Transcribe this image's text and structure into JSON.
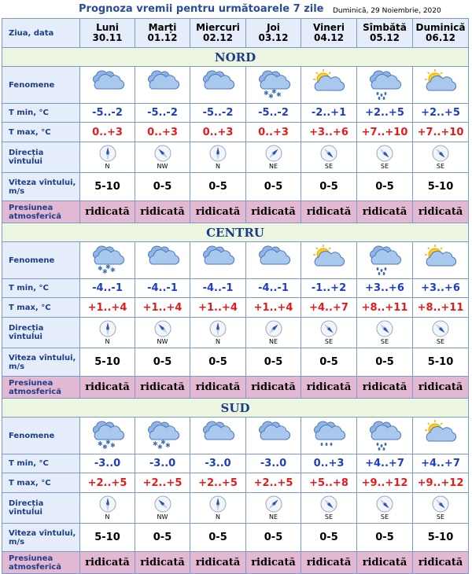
{
  "header": {
    "title": "Prognoza vremii pentru următoarele 7 zile",
    "date": "Duminică, 29 Noiembrie, 2020"
  },
  "columns": {
    "label": "Ziua, data",
    "days": [
      {
        "name": "Luni",
        "date": "30.11"
      },
      {
        "name": "Marți",
        "date": "01.12"
      },
      {
        "name": "Miercuri",
        "date": "02.12"
      },
      {
        "name": "Joi",
        "date": "03.12"
      },
      {
        "name": "Vineri",
        "date": "04.12"
      },
      {
        "name": "Sîmbătă",
        "date": "05.12"
      },
      {
        "name": "Duminică",
        "date": "06.12"
      }
    ]
  },
  "row_labels": {
    "phenomena": "Fenomene",
    "tmin": "T min, °C",
    "tmax": "T max, °C",
    "wind_dir": "Direcția vîntului",
    "wind_speed": "Viteza vîntului, m/s",
    "pressure": "Presiunea atmosferică"
  },
  "regions": [
    {
      "name": "NORD",
      "icons": [
        "cloudy",
        "cloudy",
        "cloudy",
        "cloudy-snow",
        "partly-cloudy",
        "cloudy-rain",
        "partly-cloudy"
      ],
      "tmin": [
        "-5..-2",
        "-5..-2",
        "-5..-2",
        "-5..-2",
        "-2..+1",
        "+2..+5",
        "+2..+5"
      ],
      "tmax": [
        "0..+3",
        "0..+3",
        "0..+3",
        "0..+3",
        "+3..+6",
        "+7..+10",
        "+7..+10"
      ],
      "wind_dir": [
        "N",
        "NW",
        "N",
        "NE",
        "SE",
        "SE",
        "SE"
      ],
      "wind_speed": [
        "5-10",
        "0-5",
        "0-5",
        "0-5",
        "0-5",
        "0-5",
        "5-10"
      ],
      "pressure": [
        "ridicată",
        "ridicată",
        "ridicată",
        "ridicată",
        "ridicată",
        "ridicată",
        "ridicată"
      ]
    },
    {
      "name": "CENTRU",
      "icons": [
        "cloudy-snow",
        "cloudy",
        "cloudy",
        "cloudy",
        "partly-cloudy",
        "cloudy-rain",
        "partly-cloudy"
      ],
      "tmin": [
        "-4..-1",
        "-4..-1",
        "-4..-1",
        "-4..-1",
        "-1..+2",
        "+3..+6",
        "+3..+6"
      ],
      "tmax": [
        "+1..+4",
        "+1..+4",
        "+1..+4",
        "+1..+4",
        "+4..+7",
        "+8..+11",
        "+8..+11"
      ],
      "wind_dir": [
        "N",
        "NW",
        "N",
        "NE",
        "SE",
        "SE",
        "SE"
      ],
      "wind_speed": [
        "5-10",
        "0-5",
        "0-5",
        "0-5",
        "0-5",
        "0-5",
        "5-10"
      ],
      "pressure": [
        "ridicată",
        "ridicată",
        "ridicată",
        "ridicată",
        "ridicată",
        "ridicată",
        "ridicată"
      ]
    },
    {
      "name": "SUD",
      "icons": [
        "cloudy-snow",
        "cloudy-snow",
        "cloudy",
        "cloudy",
        "cloudy-drizzle",
        "cloudy-rain",
        "partly-cloudy"
      ],
      "tmin": [
        "-3..0",
        "-3..0",
        "-3..0",
        "-3..0",
        "0..+3",
        "+4..+7",
        "+4..+7"
      ],
      "tmax": [
        "+2..+5",
        "+2..+5",
        "+2..+5",
        "+2..+5",
        "+5..+8",
        "+9..+12",
        "+9..+12"
      ],
      "wind_dir": [
        "N",
        "NW",
        "N",
        "NE",
        "SE",
        "SE",
        "SE"
      ],
      "wind_speed": [
        "5-10",
        "0-5",
        "0-5",
        "0-5",
        "0-5",
        "0-5",
        "5-10"
      ],
      "pressure": [
        "ridicată",
        "ridicată",
        "ridicată",
        "ridicată",
        "ridicată",
        "ridicată",
        "ridicată"
      ]
    }
  ],
  "colors": {
    "title": "#2a4d9a",
    "tmin": "#1b3ec7",
    "tmax": "#e51b1b",
    "pressure_bg": "#e3b8d3",
    "section_bg": "#ecf6e1",
    "label_bg": "#e4edf9"
  }
}
